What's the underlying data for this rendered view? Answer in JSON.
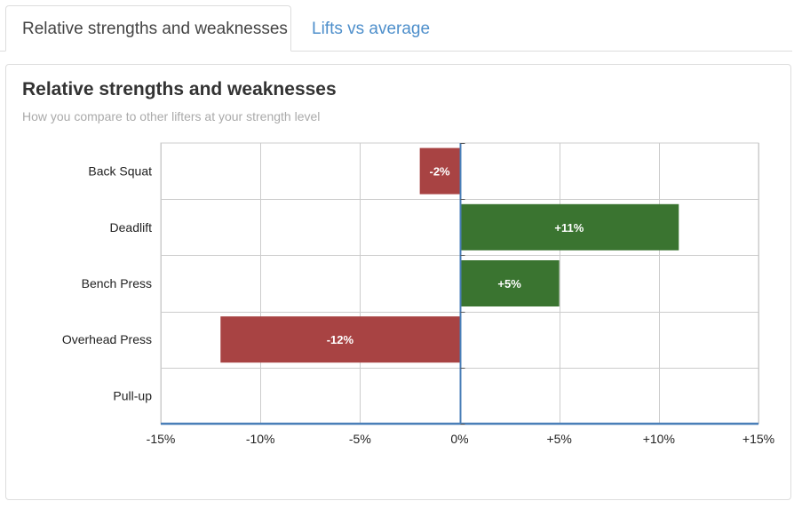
{
  "tabs": [
    {
      "label": "Relative strengths and weaknesses",
      "active": true
    },
    {
      "label": "Lifts vs average",
      "active": false
    }
  ],
  "chart_data": {
    "type": "bar",
    "orientation": "horizontal",
    "title": "Relative strengths and weaknesses",
    "subtitle": "How you compare to other lifters at your strength level",
    "categories": [
      "Back Squat",
      "Deadlift",
      "Bench Press",
      "Overhead Press",
      "Pull-up"
    ],
    "values": [
      -2,
      11,
      5,
      -12,
      null
    ],
    "data_labels": [
      "-2%",
      "+11%",
      "+5%",
      "-12%",
      ""
    ],
    "xlim": [
      -15,
      15
    ],
    "x_ticks": [
      -15,
      -10,
      -5,
      0,
      5,
      10,
      15
    ],
    "x_tick_labels": [
      "-15%",
      "-10%",
      "-5%",
      "0%",
      "+5%",
      "+10%",
      "+15%"
    ],
    "xlabel": "",
    "ylabel": "",
    "grid": true,
    "legend": "none",
    "colors": {
      "positive": "#3a7430",
      "negative": "#a84343",
      "zero_axis": "#4a7fb8",
      "grid": "#cccccc"
    }
  }
}
